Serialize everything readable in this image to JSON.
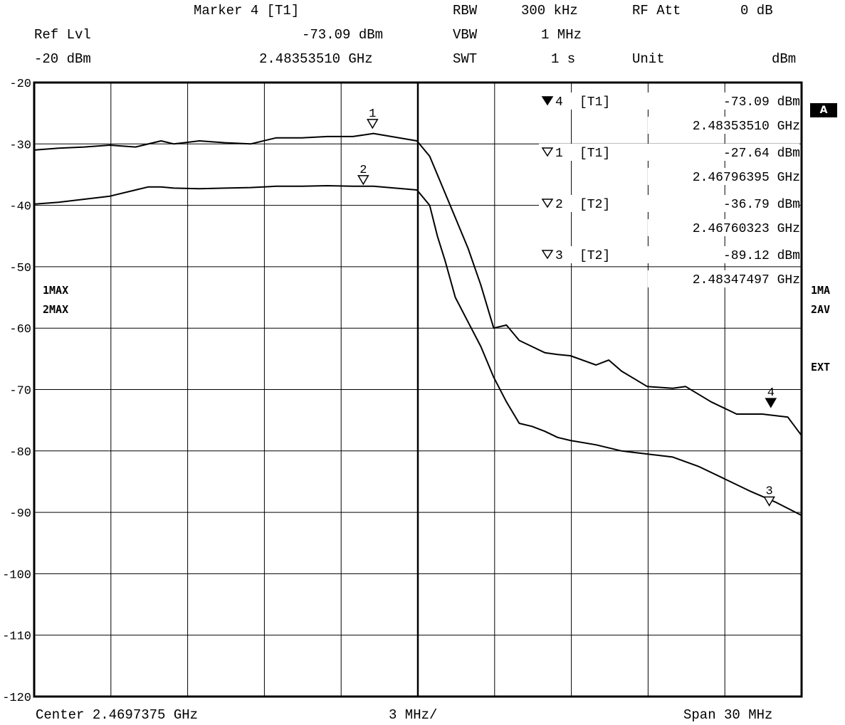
{
  "header": {
    "marker_label": "Marker 4 [T1]",
    "ref_lvl_label": "Ref Lvl",
    "ref_lvl_value": "-20 dBm",
    "marker_level": "-73.09 dBm",
    "marker_freq": "2.48353510 GHz",
    "rbw_label": "RBW",
    "rbw_value": "300 kHz",
    "vbw_label": "VBW",
    "vbw_value": "1 MHz",
    "swt_label": "SWT",
    "swt_value": "1 s",
    "rfatt_label": "RF Att",
    "rfatt_value": "0 dB",
    "unit_label": "Unit",
    "unit_value": "dBm"
  },
  "footer": {
    "center": "Center 2.4697375 GHz",
    "per_div": "3 MHz/",
    "span": "Span 30 MHz"
  },
  "side": {
    "badge": "A",
    "trace1_mode": "1MA",
    "trace2_mode": "2AV",
    "ext": "EXT",
    "left_trace1": "1MAX",
    "left_trace2": "2MAX"
  },
  "marker_table": [
    {
      "symbol": "filled",
      "num": "4",
      "trace": "[T1]",
      "level": "-73.09 dBm",
      "freq": "2.48353510 GHz"
    },
    {
      "symbol": "open",
      "num": "1",
      "trace": "[T1]",
      "level": "-27.64 dBm",
      "freq": "2.46796395 GHz"
    },
    {
      "symbol": "open",
      "num": "2",
      "trace": "[T2]",
      "level": "-36.79 dBm",
      "freq": "2.46760323 GHz"
    },
    {
      "symbol": "open",
      "num": "3",
      "trace": "[T2]",
      "level": "-89.12 dBm",
      "freq": "2.48347497 GHz"
    }
  ],
  "chart_data": {
    "type": "line",
    "xlabel": "",
    "ylabel": "",
    "x_unit": "GHz",
    "xlim": [
      2.4547375,
      2.4847375
    ],
    "ylim": [
      -120,
      -20
    ],
    "yticks": [
      -20,
      -30,
      -40,
      -50,
      -60,
      -70,
      -80,
      -90,
      -100,
      -110,
      -120
    ],
    "grid": true,
    "series": [
      {
        "name": "1MAX",
        "x": [
          2.4547375,
          2.4557,
          2.4567,
          2.4577,
          2.4587,
          2.4597,
          2.4602,
          2.4612,
          2.4622,
          2.4632,
          2.4642,
          2.4652,
          2.4662,
          2.4672,
          2.468,
          2.4697,
          2.4702,
          2.4707,
          2.4712,
          2.4717,
          2.4722,
          2.4727,
          2.4732,
          2.4737,
          2.4742,
          2.4747,
          2.4752,
          2.4757,
          2.4767,
          2.4772,
          2.4777,
          2.4787,
          2.4797,
          2.4802,
          2.4812,
          2.4822,
          2.4832,
          2.4842,
          2.4847375
        ],
        "values": [
          -31,
          -30.7,
          -30.5,
          -30.2,
          -30.5,
          -29.5,
          -30,
          -29.5,
          -29.8,
          -30,
          -29,
          -29,
          -28.8,
          -28.8,
          -28.3,
          -29.5,
          -32,
          -37,
          -42,
          -47,
          -53,
          -60,
          -59.5,
          -62,
          -63,
          -64,
          -64.3,
          -64.5,
          -66,
          -65.2,
          -67,
          -69.5,
          -69.8,
          -69.5,
          -72,
          -74,
          -74,
          -74.5,
          -77.5
        ]
      },
      {
        "name": "2MAX",
        "x": [
          2.4547375,
          2.4557,
          2.4567,
          2.4577,
          2.4587,
          2.4592,
          2.4597,
          2.4602,
          2.4612,
          2.4622,
          2.4632,
          2.4642,
          2.4652,
          2.4662,
          2.4672,
          2.468,
          2.4697,
          2.4702,
          2.4705,
          2.4708,
          2.4712,
          2.4717,
          2.4722,
          2.4727,
          2.4732,
          2.4737,
          2.4742,
          2.4747,
          2.4752,
          2.4757,
          2.4767,
          2.4777,
          2.4787,
          2.4797,
          2.4807,
          2.4817,
          2.4827,
          2.4837,
          2.4847375
        ],
        "values": [
          -39.8,
          -39.5,
          -39,
          -38.5,
          -37.5,
          -37,
          -37,
          -37.2,
          -37.3,
          -37.2,
          -37.1,
          -36.9,
          -36.9,
          -36.8,
          -36.9,
          -36.9,
          -37.5,
          -40,
          -45,
          -49,
          -55,
          -59,
          -63,
          -68,
          -72,
          -75.5,
          -76,
          -76.8,
          -77.8,
          -78.3,
          -79,
          -80,
          -80.5,
          -81,
          -82.5,
          -84.5,
          -86.5,
          -88.3,
          -90.5
        ]
      }
    ],
    "markers": [
      {
        "name": "1",
        "trace": "T1",
        "x": 2.46796395,
        "y": -27.64,
        "filled": false
      },
      {
        "name": "2",
        "trace": "T2",
        "x": 2.46760323,
        "y": -36.79,
        "filled": false
      },
      {
        "name": "3",
        "trace": "T2",
        "x": 2.48347497,
        "y": -89.12,
        "filled": false
      },
      {
        "name": "4",
        "trace": "T1",
        "x": 2.4835351,
        "y": -73.09,
        "filled": true
      }
    ]
  }
}
